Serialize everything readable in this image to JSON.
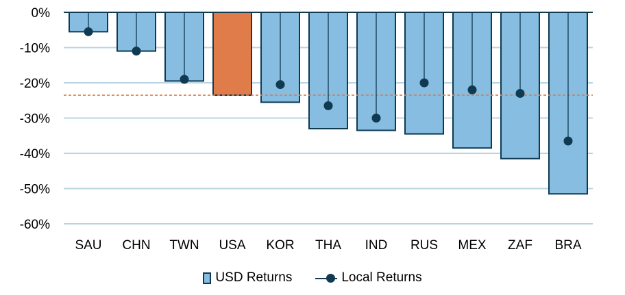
{
  "chart_data": {
    "type": "bar",
    "categories": [
      "SAU",
      "CHN",
      "TWN",
      "USA",
      "KOR",
      "THA",
      "IND",
      "RUS",
      "MEX",
      "ZAF",
      "BRA"
    ],
    "series": [
      {
        "name": "USD Returns",
        "values": [
          -5.5,
          -11,
          -19.5,
          -23.5,
          -25.5,
          -33,
          -33.5,
          -34.5,
          -38.5,
          -41.5,
          -51.5
        ]
      },
      {
        "name": "Local Returns",
        "values": [
          -5.5,
          -11,
          -19,
          null,
          -20.5,
          -26.5,
          -30,
          -20,
          -22,
          -23,
          -36.5
        ]
      }
    ],
    "highlight_category": "USA",
    "reference_line": -23.5,
    "yticks": [
      0,
      -10,
      -20,
      -30,
      -40,
      -50,
      -60
    ],
    "ytick_labels": [
      "0%",
      "-10%",
      "-20%",
      "-30%",
      "-40%",
      "-50%",
      "-60%"
    ],
    "ylim": [
      -60,
      0
    ],
    "grid": true,
    "legend_position": "bottom",
    "colors": {
      "bar": "#86bde0",
      "bar_outline": "#0f3a52",
      "highlight": "#e07b4a",
      "marker": "#0f3a52",
      "grid": "#b9d4e4",
      "reference_line": "#e07b4a"
    }
  },
  "legend": {
    "usd_label": "USD Returns",
    "local_label": "Local Returns"
  }
}
